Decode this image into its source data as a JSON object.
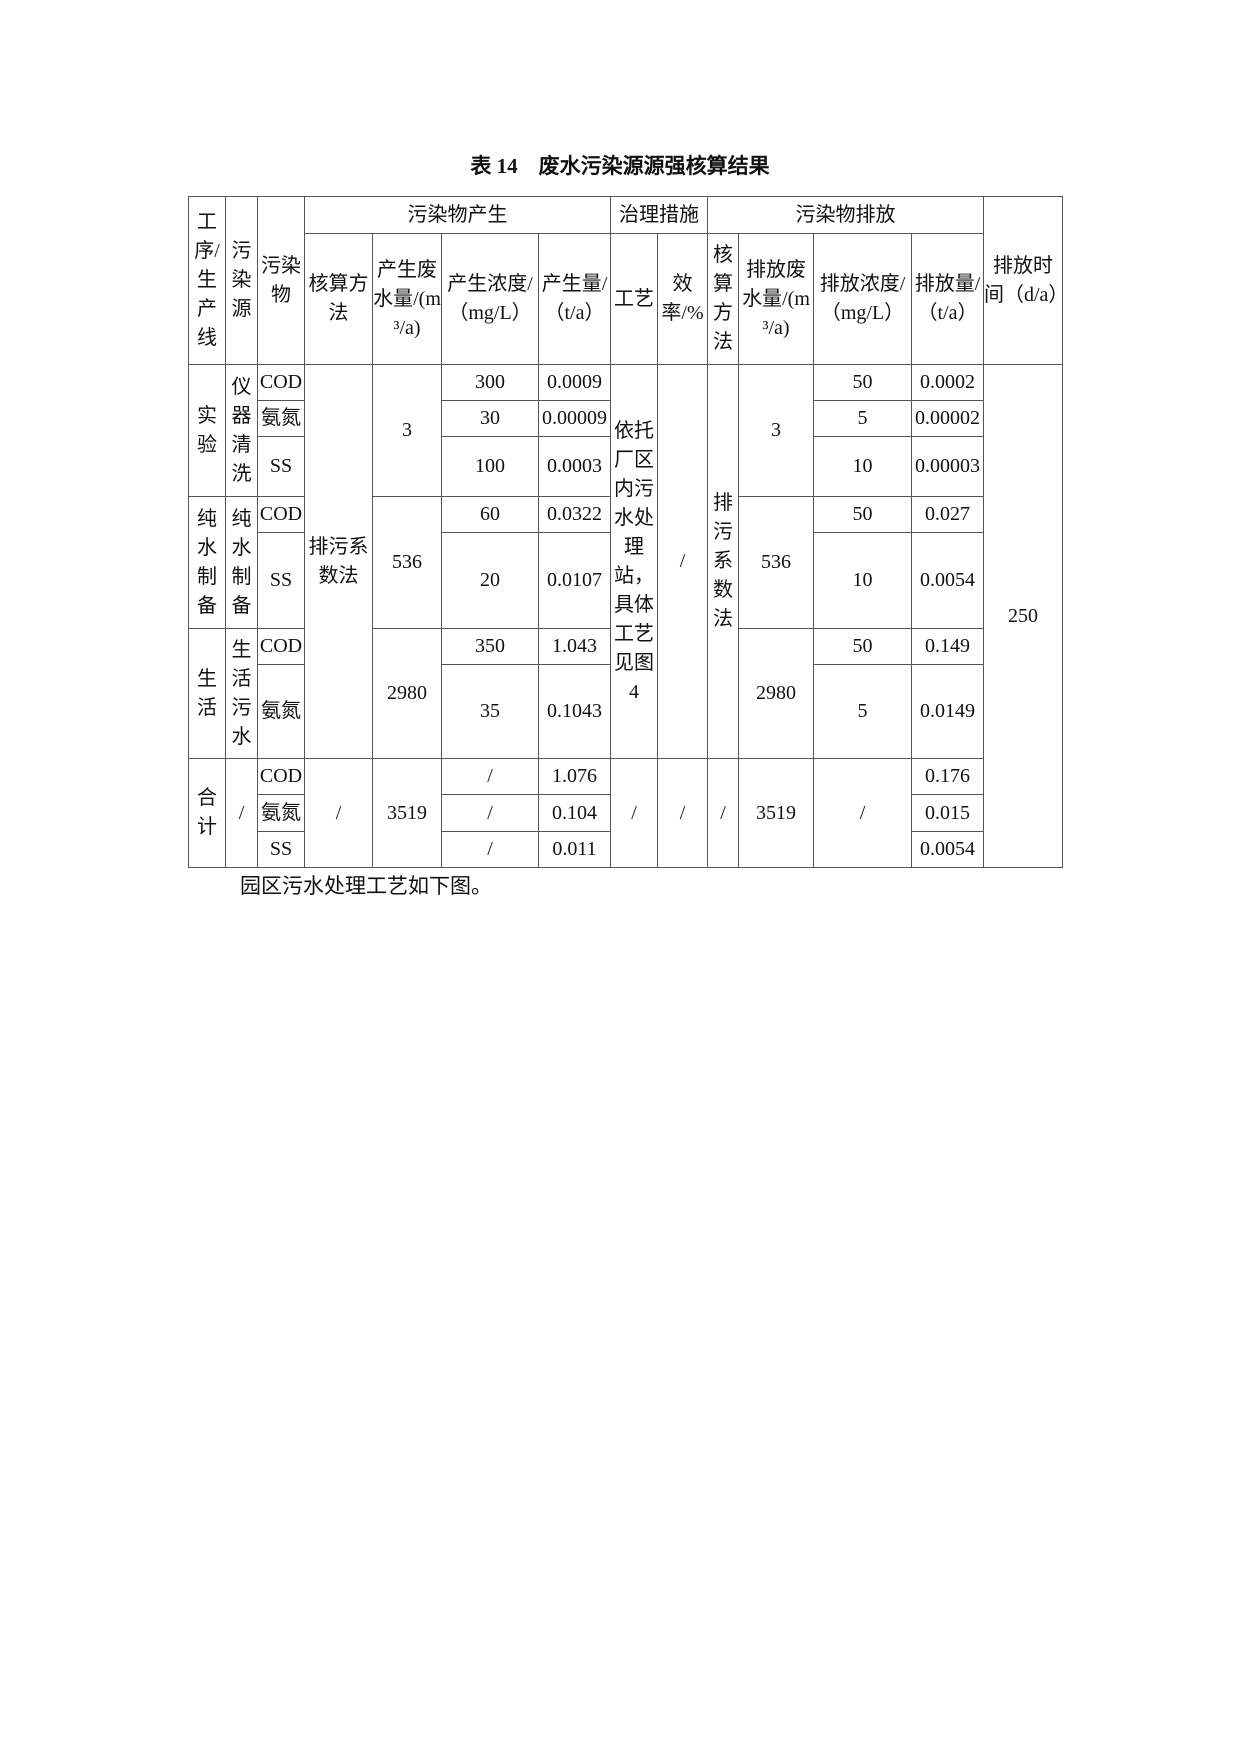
{
  "title": "表 14　废水污染源源强核算结果",
  "header": {
    "process": "工序/生产线",
    "source": "污染源",
    "pollutant": "污染物",
    "production_group": "污染物产生",
    "treatment_group": "治理措施",
    "emission_group": "污染物排放",
    "discharge_time": "排放时间（d/a）",
    "prod_method": "核算方法",
    "prod_water": "产生废水量/(m³/a)",
    "prod_conc": "产生浓度/（mg/L）",
    "prod_amount": "产生量/（t/a）",
    "craft": "工艺",
    "efficiency": "效率/%",
    "emis_method": "核算方法",
    "emis_water": "排放废水量/(m³/a)",
    "emis_conc": "排放浓度/（mg/L）",
    "emis_amount": "排放量/（t/a）"
  },
  "shared": {
    "prod_method": "排污系数法",
    "craft": "依托厂区内污水处理站，具体工艺见图4",
    "efficiency": "/",
    "emis_method": "排污系数法",
    "discharge_time": "250"
  },
  "groups": [
    {
      "process": "实验",
      "source": "仪器清洗",
      "prod_water": "3",
      "emis_water": "3",
      "rows": [
        {
          "pollutant": "COD",
          "prod_conc": "300",
          "prod_amount": "0.0009",
          "emis_conc": "50",
          "emis_amount": "0.0002"
        },
        {
          "pollutant": "氨氮",
          "prod_conc": "30",
          "prod_amount": "0.00009",
          "emis_conc": "5",
          "emis_amount": "0.00002"
        },
        {
          "pollutant": "SS",
          "prod_conc": "100",
          "prod_amount": "0.0003",
          "emis_conc": "10",
          "emis_amount": "0.00003"
        }
      ]
    },
    {
      "process": "纯水制备",
      "source": "纯水制备",
      "prod_water": "536",
      "emis_water": "536",
      "rows": [
        {
          "pollutant": "COD",
          "prod_conc": "60",
          "prod_amount": "0.0322",
          "emis_conc": "50",
          "emis_amount": "0.027"
        },
        {
          "pollutant": "SS",
          "prod_conc": "20",
          "prod_amount": "0.0107",
          "emis_conc": "10",
          "emis_amount": "0.0054"
        }
      ]
    },
    {
      "process": "生活",
      "source": "生活污水",
      "prod_water": "2980",
      "emis_water": "2980",
      "rows": [
        {
          "pollutant": "COD",
          "prod_conc": "350",
          "prod_amount": "1.043",
          "emis_conc": "50",
          "emis_amount": "0.149"
        },
        {
          "pollutant": "氨氮",
          "prod_conc": "35",
          "prod_amount": "0.1043",
          "emis_conc": "5",
          "emis_amount": "0.0149"
        }
      ]
    }
  ],
  "total": {
    "process": "合计",
    "source": "/",
    "prod_method": "/",
    "prod_water": "3519",
    "craft": "/",
    "efficiency": "/",
    "emis_method": "/",
    "emis_water": "3519",
    "emis_conc": "/",
    "rows": [
      {
        "pollutant": "COD",
        "prod_conc": "/",
        "prod_amount": "1.076",
        "emis_amount": "0.176"
      },
      {
        "pollutant": "氨氮",
        "prod_conc": "/",
        "prod_amount": "0.104",
        "emis_amount": "0.015"
      },
      {
        "pollutant": "SS",
        "prod_conc": "/",
        "prod_amount": "0.011",
        "emis_amount": "0.0054"
      }
    ]
  },
  "footer_text": "园区污水处理工艺如下图。"
}
